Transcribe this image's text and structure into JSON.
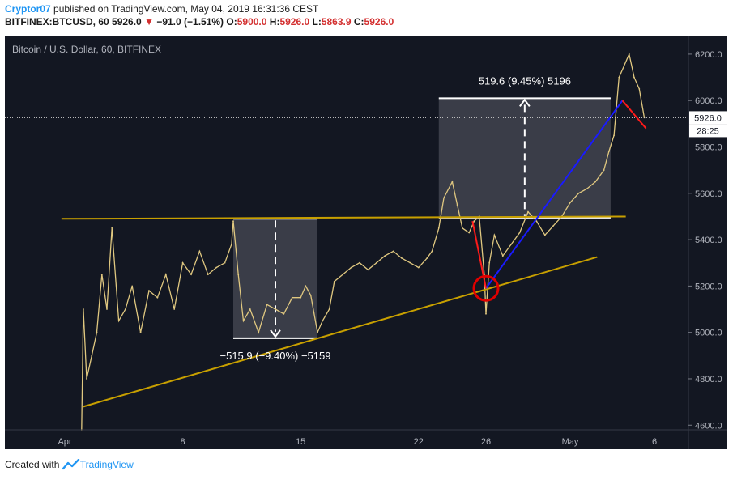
{
  "header": {
    "user": "Cryptor07",
    "published": "published on TradingView.com, May 04, 2019 16:31:36 CEST",
    "symbol": "BITFINEX:BTCUSD, 60",
    "last": "5926.0",
    "arrow": "▼",
    "change": "−91.0 (−1.51%)",
    "o_label": "O:",
    "o": "5900.0",
    "h_label": "H:",
    "h": "5926.0",
    "l_label": "L:",
    "l": "5863.9",
    "c_label": "C:",
    "c": "5926.0"
  },
  "footer": {
    "created": "Created with",
    "brand": "TradingView",
    "logo_icon": "tradingview-logo-icon"
  },
  "chart_data": {
    "type": "line",
    "title": "Bitcoin / U.S. Dollar, 60, BITFINEX",
    "x_ticks": [
      {
        "label": "Apr",
        "day": 1
      },
      {
        "label": "8",
        "day": 8
      },
      {
        "label": "15",
        "day": 15
      },
      {
        "label": "22",
        "day": 22
      },
      {
        "label": "26",
        "day": 26
      },
      {
        "label": "May",
        "day": 31
      },
      {
        "label": "6",
        "day": 36
      }
    ],
    "ylim": [
      4580,
      6280
    ],
    "y_ticks": [
      "4600.0",
      "4800.0",
      "5000.0",
      "5200.0",
      "5400.0",
      "5600.0",
      "5800.0",
      "6000.0",
      "6200.0"
    ],
    "price_label": "5926.0",
    "price_value": 5926,
    "countdown": "28:25",
    "series": [
      {
        "color": "#e0c880",
        "points": [
          [
            2.0,
            4580
          ],
          [
            2.1,
            5100
          ],
          [
            2.3,
            4800
          ],
          [
            2.6,
            4900
          ],
          [
            2.9,
            5000
          ],
          [
            3.2,
            5250
          ],
          [
            3.5,
            5100
          ],
          [
            3.8,
            5450
          ],
          [
            4.2,
            5050
          ],
          [
            4.6,
            5100
          ],
          [
            5.0,
            5200
          ],
          [
            5.5,
            5000
          ],
          [
            6.0,
            5180
          ],
          [
            6.5,
            5150
          ],
          [
            7.0,
            5250
          ],
          [
            7.5,
            5100
          ],
          [
            8.0,
            5300
          ],
          [
            8.5,
            5250
          ],
          [
            9.0,
            5350
          ],
          [
            9.5,
            5250
          ],
          [
            10.0,
            5280
          ],
          [
            10.5,
            5300
          ],
          [
            10.9,
            5380
          ],
          [
            11.0,
            5480
          ],
          [
            11.3,
            5250
          ],
          [
            11.6,
            5050
          ],
          [
            12.0,
            5100
          ],
          [
            12.5,
            5000
          ],
          [
            13.0,
            5120
          ],
          [
            13.5,
            5100
          ],
          [
            14.0,
            5080
          ],
          [
            14.5,
            5150
          ],
          [
            15.0,
            5150
          ],
          [
            15.3,
            5200
          ],
          [
            15.6,
            5160
          ],
          [
            16.0,
            5000
          ],
          [
            16.3,
            5050
          ],
          [
            16.7,
            5100
          ],
          [
            17.0,
            5220
          ],
          [
            17.5,
            5250
          ],
          [
            18.0,
            5280
          ],
          [
            18.5,
            5300
          ],
          [
            19.0,
            5270
          ],
          [
            19.5,
            5300
          ],
          [
            20.0,
            5330
          ],
          [
            20.5,
            5350
          ],
          [
            21.0,
            5320
          ],
          [
            21.5,
            5300
          ],
          [
            22.0,
            5280
          ],
          [
            22.5,
            5320
          ],
          [
            22.8,
            5350
          ],
          [
            23.2,
            5450
          ],
          [
            23.5,
            5580
          ],
          [
            24.0,
            5650
          ],
          [
            24.3,
            5550
          ],
          [
            24.6,
            5450
          ],
          [
            25.0,
            5430
          ],
          [
            25.3,
            5480
          ],
          [
            25.6,
            5500
          ],
          [
            25.9,
            5250
          ],
          [
            26.0,
            5080
          ],
          [
            26.2,
            5300
          ],
          [
            26.5,
            5420
          ],
          [
            27.0,
            5330
          ],
          [
            27.5,
            5380
          ],
          [
            28.0,
            5430
          ],
          [
            28.5,
            5520
          ],
          [
            29.0,
            5480
          ],
          [
            29.5,
            5420
          ],
          [
            30.0,
            5460
          ],
          [
            30.5,
            5500
          ],
          [
            31.0,
            5560
          ],
          [
            31.5,
            5600
          ],
          [
            32.0,
            5620
          ],
          [
            32.5,
            5650
          ],
          [
            33.0,
            5700
          ],
          [
            33.3,
            5780
          ],
          [
            33.6,
            5850
          ],
          [
            33.9,
            6100
          ],
          [
            34.2,
            6150
          ],
          [
            34.5,
            6200
          ],
          [
            34.8,
            6100
          ],
          [
            35.1,
            6050
          ],
          [
            35.4,
            5926
          ]
        ]
      }
    ],
    "annotations": {
      "resistance_line": {
        "color": "#c8a000",
        "x1": 0.8,
        "y1": 5490,
        "x2": 34.3,
        "y2": 5500
      },
      "support_line": {
        "color": "#c8a000",
        "x1": 2.1,
        "y1": 4680,
        "x2": 32.6,
        "y2": 5325
      },
      "measure_down": {
        "x1": 11.0,
        "x2": 16.0,
        "y_top": 5490,
        "y_bottom": 4975,
        "label": "−515.9 (−9.40%) −5159"
      },
      "measure_up": {
        "x1": 23.2,
        "x2": 33.4,
        "y_top": 6010,
        "y_bottom": 5495,
        "label": "519.6 (9.45%) 5196"
      },
      "red_line_1": {
        "color": "#ff1a1a",
        "x1": 25.2,
        "y1": 5480,
        "x2": 26.0,
        "y2": 5190
      },
      "red_line_2": {
        "color": "#ff1a1a",
        "x1": 34.1,
        "y1": 6000,
        "x2": 35.5,
        "y2": 5880
      },
      "blue_line": {
        "color": "#1a1aff",
        "x1": 26.0,
        "y1": 5190,
        "x2": 34.1,
        "y2": 6000
      },
      "circle": {
        "color": "#e00000",
        "x": 26.0,
        "y": 5190
      }
    }
  }
}
